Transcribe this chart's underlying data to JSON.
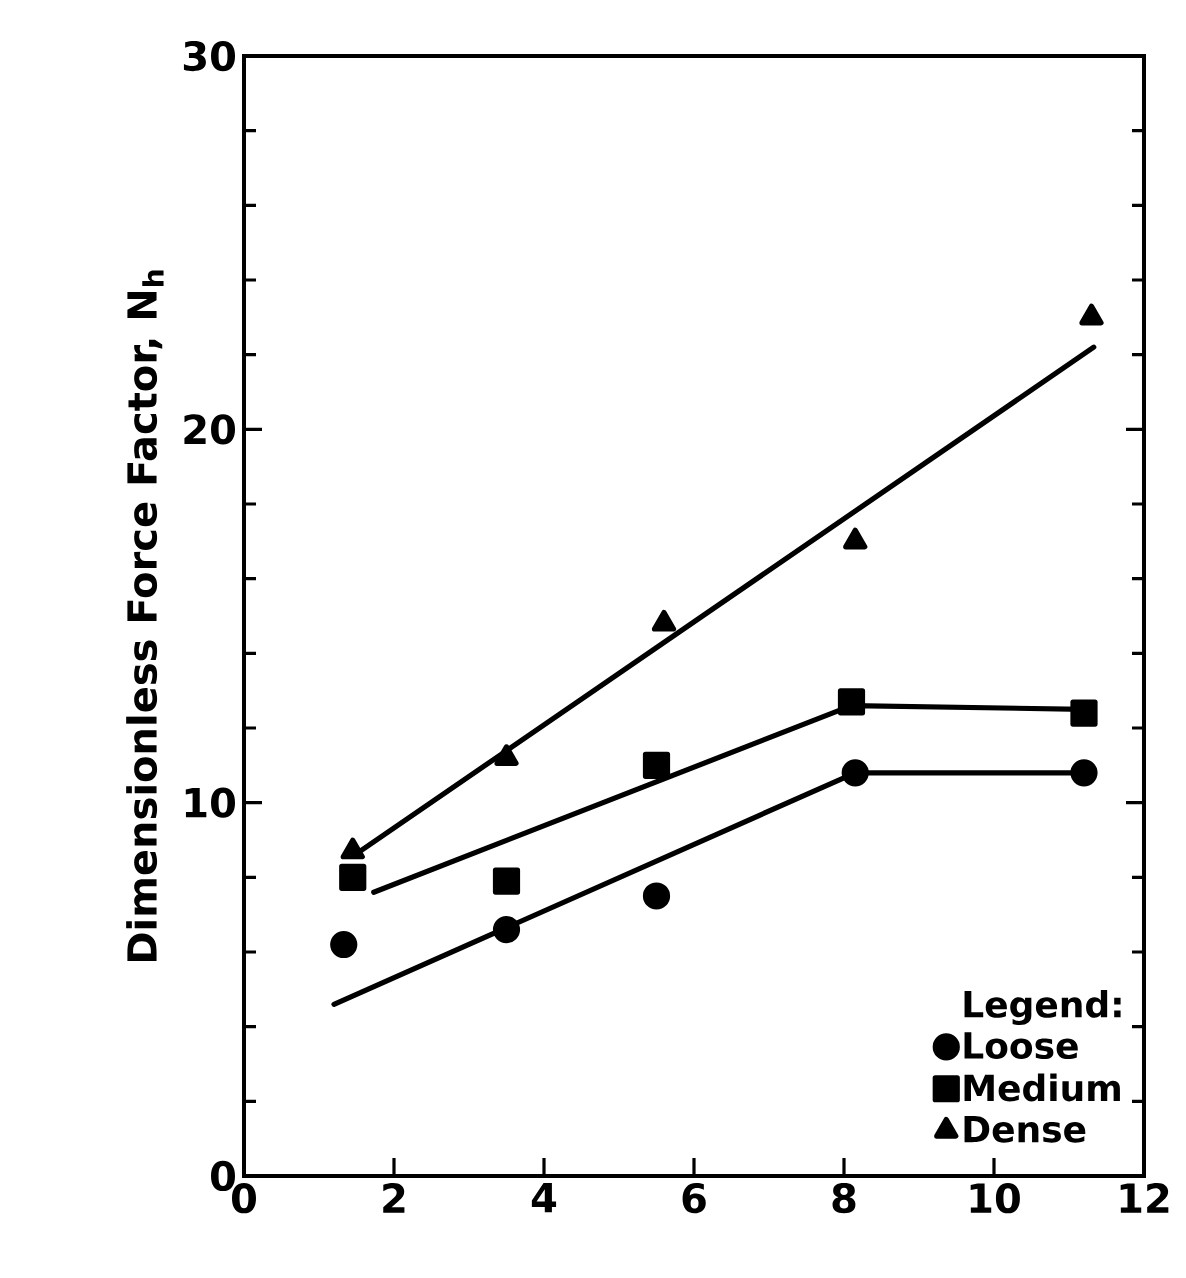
{
  "chart_data": {
    "type": "scatter",
    "ylabel": "Dimensionless Force Factor, N$_{h}$",
    "legend_title": "Legend:",
    "xlim": [
      0,
      12
    ],
    "xticks": [
      0,
      2,
      4,
      6,
      8,
      10,
      12
    ],
    "ylim": [
      0,
      30
    ],
    "yticks": [
      0,
      10,
      20,
      30
    ],
    "legend": "bottom right",
    "grid": false,
    "series": [
      {
        "name": "Loose",
        "color": "#000000",
        "marker": "circle",
        "x": [
          1.33,
          3.5,
          5.5,
          8.15,
          11.2
        ],
        "values": [
          6.2,
          6.6,
          7.5,
          10.8,
          10.8
        ]
      },
      {
        "name": "Medium",
        "color": "#000000",
        "marker": "square",
        "x": [
          1.45,
          3.5,
          5.5,
          8.1,
          11.2
        ],
        "values": [
          8.0,
          7.9,
          11.0,
          12.7,
          12.4
        ]
      },
      {
        "name": "Dense",
        "color": "#000000",
        "marker": "triangle",
        "x": [
          1.45,
          3.5,
          5.6,
          8.15,
          11.3
        ],
        "values": [
          8.7,
          11.2,
          14.8,
          17.0,
          23.0
        ]
      },
      {
        "type": "line",
        "color": "#000000",
        "marker": "none",
        "x": [
          1.2,
          8.15,
          11.2
        ],
        "values": [
          4.6,
          10.8,
          10.8
        ]
      },
      {
        "type": "line",
        "color": "#000000",
        "marker": "none",
        "x": [
          1.73,
          8.1,
          11.2
        ],
        "values": [
          7.6,
          12.6,
          12.5
        ]
      },
      {
        "type": "line",
        "color": "#000000",
        "marker": "none",
        "x": [
          1.55,
          11.33
        ],
        "values": [
          8.7,
          22.2
        ]
      }
    ]
  }
}
